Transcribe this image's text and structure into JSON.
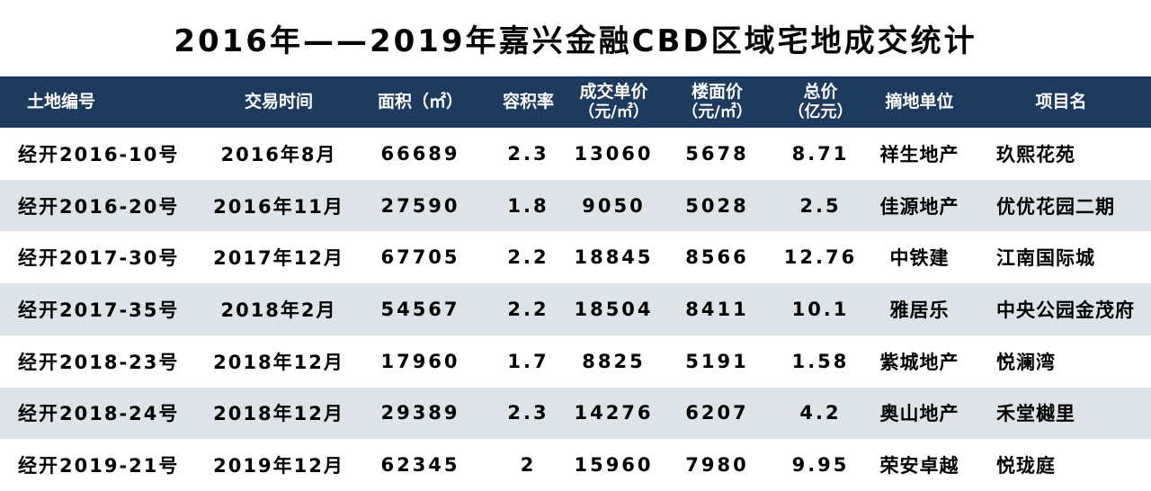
{
  "title": "2016年——2019年嘉兴金融CBD区域宅地成交统计",
  "colors": {
    "header_bg": "#1e3a5f",
    "row_alt_bg": "#dde4e9",
    "header_text": "#ffffff",
    "body_text": "#000000"
  },
  "table": {
    "headers": [
      {
        "label": "土地编号",
        "unit": ""
      },
      {
        "label": "交易时间",
        "unit": ""
      },
      {
        "label": "面积（㎡）",
        "unit": ""
      },
      {
        "label": "容积率",
        "unit": ""
      },
      {
        "label": "成交单价",
        "unit": "（元/㎡）"
      },
      {
        "label": "楼面价",
        "unit": "（元/㎡）"
      },
      {
        "label": "总价",
        "unit": "（亿元）"
      },
      {
        "label": "摘地单位",
        "unit": ""
      },
      {
        "label": "项目名",
        "unit": ""
      }
    ],
    "rows": [
      [
        "经开2016-10号",
        "2016年8月",
        "66689",
        "2.3",
        "13060",
        "5678",
        "8.71",
        "祥生地产",
        "玖熙花苑"
      ],
      [
        "经开2016-20号",
        "2016年11月",
        "27590",
        "1.8",
        "9050",
        "5028",
        "2.5",
        "佳源地产",
        "优优花园二期"
      ],
      [
        "经开2017-30号",
        "2017年12月",
        "67705",
        "2.2",
        "18845",
        "8566",
        "12.76",
        "中铁建",
        "江南国际城"
      ],
      [
        "经开2017-35号",
        "2018年2月",
        "54567",
        "2.2",
        "18504",
        "8411",
        "10.1",
        "雅居乐",
        "中央公园金茂府"
      ],
      [
        "经开2018-23号",
        "2018年12月",
        "17960",
        "1.7",
        "8825",
        "5191",
        "1.58",
        "紫城地产",
        "悦澜湾"
      ],
      [
        "经开2018-24号",
        "2018年12月",
        "29389",
        "2.3",
        "14276",
        "6207",
        "4.2",
        "奥山地产",
        "禾堂樾里"
      ],
      [
        "经开2019-21号",
        "2019年12月",
        "62345",
        "2",
        "15960",
        "7980",
        "9.95",
        "荣安卓越",
        "悦珑庭"
      ]
    ]
  },
  "chart_data": {
    "type": "table",
    "title": "2016年——2019年嘉兴金融CBD区域宅地成交统计",
    "columns": [
      "土地编号",
      "交易时间",
      "面积（㎡）",
      "容积率",
      "成交单价（元/㎡）",
      "楼面价（元/㎡）",
      "总价（亿元）",
      "摘地单位",
      "项目名"
    ],
    "rows": [
      [
        "经开2016-10号",
        "2016年8月",
        66689,
        2.3,
        13060,
        5678,
        8.71,
        "祥生地产",
        "玖熙花苑"
      ],
      [
        "经开2016-20号",
        "2016年11月",
        27590,
        1.8,
        9050,
        5028,
        2.5,
        "佳源地产",
        "优优花园二期"
      ],
      [
        "经开2017-30号",
        "2017年12月",
        67705,
        2.2,
        18845,
        8566,
        12.76,
        "中铁建",
        "江南国际城"
      ],
      [
        "经开2017-35号",
        "2018年2月",
        54567,
        2.2,
        18504,
        8411,
        10.1,
        "雅居乐",
        "中央公园金茂府"
      ],
      [
        "经开2018-23号",
        "2018年12月",
        17960,
        1.7,
        8825,
        5191,
        1.58,
        "紫城地产",
        "悦澜湾"
      ],
      [
        "经开2018-24号",
        "2018年12月",
        29389,
        2.3,
        14276,
        6207,
        4.2,
        "奥山地产",
        "禾堂樾里"
      ],
      [
        "经开2019-21号",
        "2019年12月",
        62345,
        2,
        15960,
        7980,
        9.95,
        "荣安卓越",
        "悦珑庭"
      ]
    ]
  }
}
